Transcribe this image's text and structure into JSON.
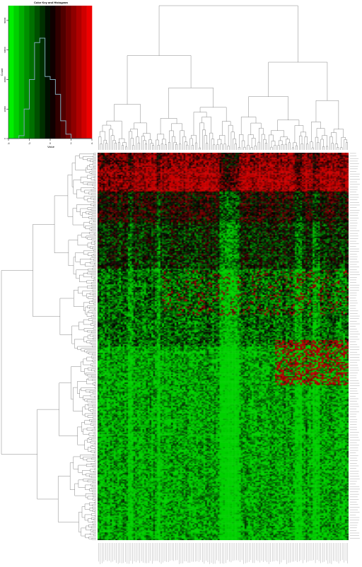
{
  "chart_data": [
    {
      "type": "heatmap",
      "color_scale": {
        "low": "#00ff00",
        "mid": "#000000",
        "high": "#ff0000",
        "value_range": [
          -4,
          4
        ]
      },
      "row_dendrogram": true,
      "column_dendrogram": true,
      "row_labels_side": "right",
      "column_labels_side": "bottom",
      "row_count_approx": 300,
      "column_count_approx": 140,
      "blocks_description": "top rows mostly red (high), bottom rows mostly green (low)"
    },
    {
      "type": "bar",
      "role": "color-key-histogram",
      "title": "Color Key and Histogram",
      "xlabel": "Value",
      "ylabel": "Count",
      "x_ticks": [
        "-4",
        "-2",
        "0",
        "2",
        "4"
      ],
      "y_ticks": [
        "0",
        "20000",
        "40000",
        "60000",
        "80000"
      ],
      "histogram": {
        "bin_edges": [
          -4,
          -3.5,
          -3,
          -2.5,
          -2,
          -1.5,
          -1,
          -0.5,
          0,
          0.5,
          1,
          1.5,
          2,
          2.5,
          3,
          3.5,
          4
        ],
        "counts": [
          0,
          0,
          2000,
          20000,
          40000,
          65000,
          68000,
          42000,
          40000,
          30000,
          12000,
          3000,
          0,
          0,
          0,
          0
        ],
        "ylim": [
          0,
          90000
        ]
      }
    }
  ]
}
